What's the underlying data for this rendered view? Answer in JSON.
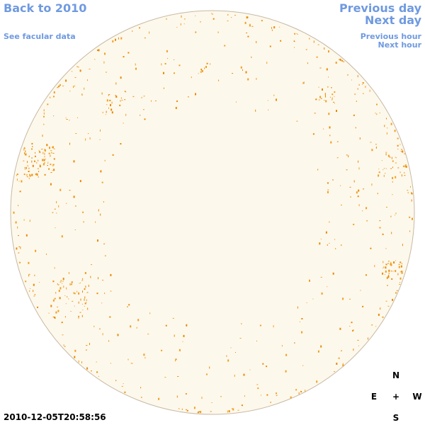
{
  "header": {
    "back_link": "Back to 2010",
    "facular_link": "See facular data"
  },
  "navigation": {
    "previous_day": "Previous day",
    "next_day": "Next day",
    "previous_hour": "Previous hour",
    "next_hour": "Next hour"
  },
  "timestamp": "2010-12-05T20:58:56",
  "compass": {
    "north": "N",
    "east": "E",
    "center": "+",
    "west": "W",
    "south": "S"
  }
}
